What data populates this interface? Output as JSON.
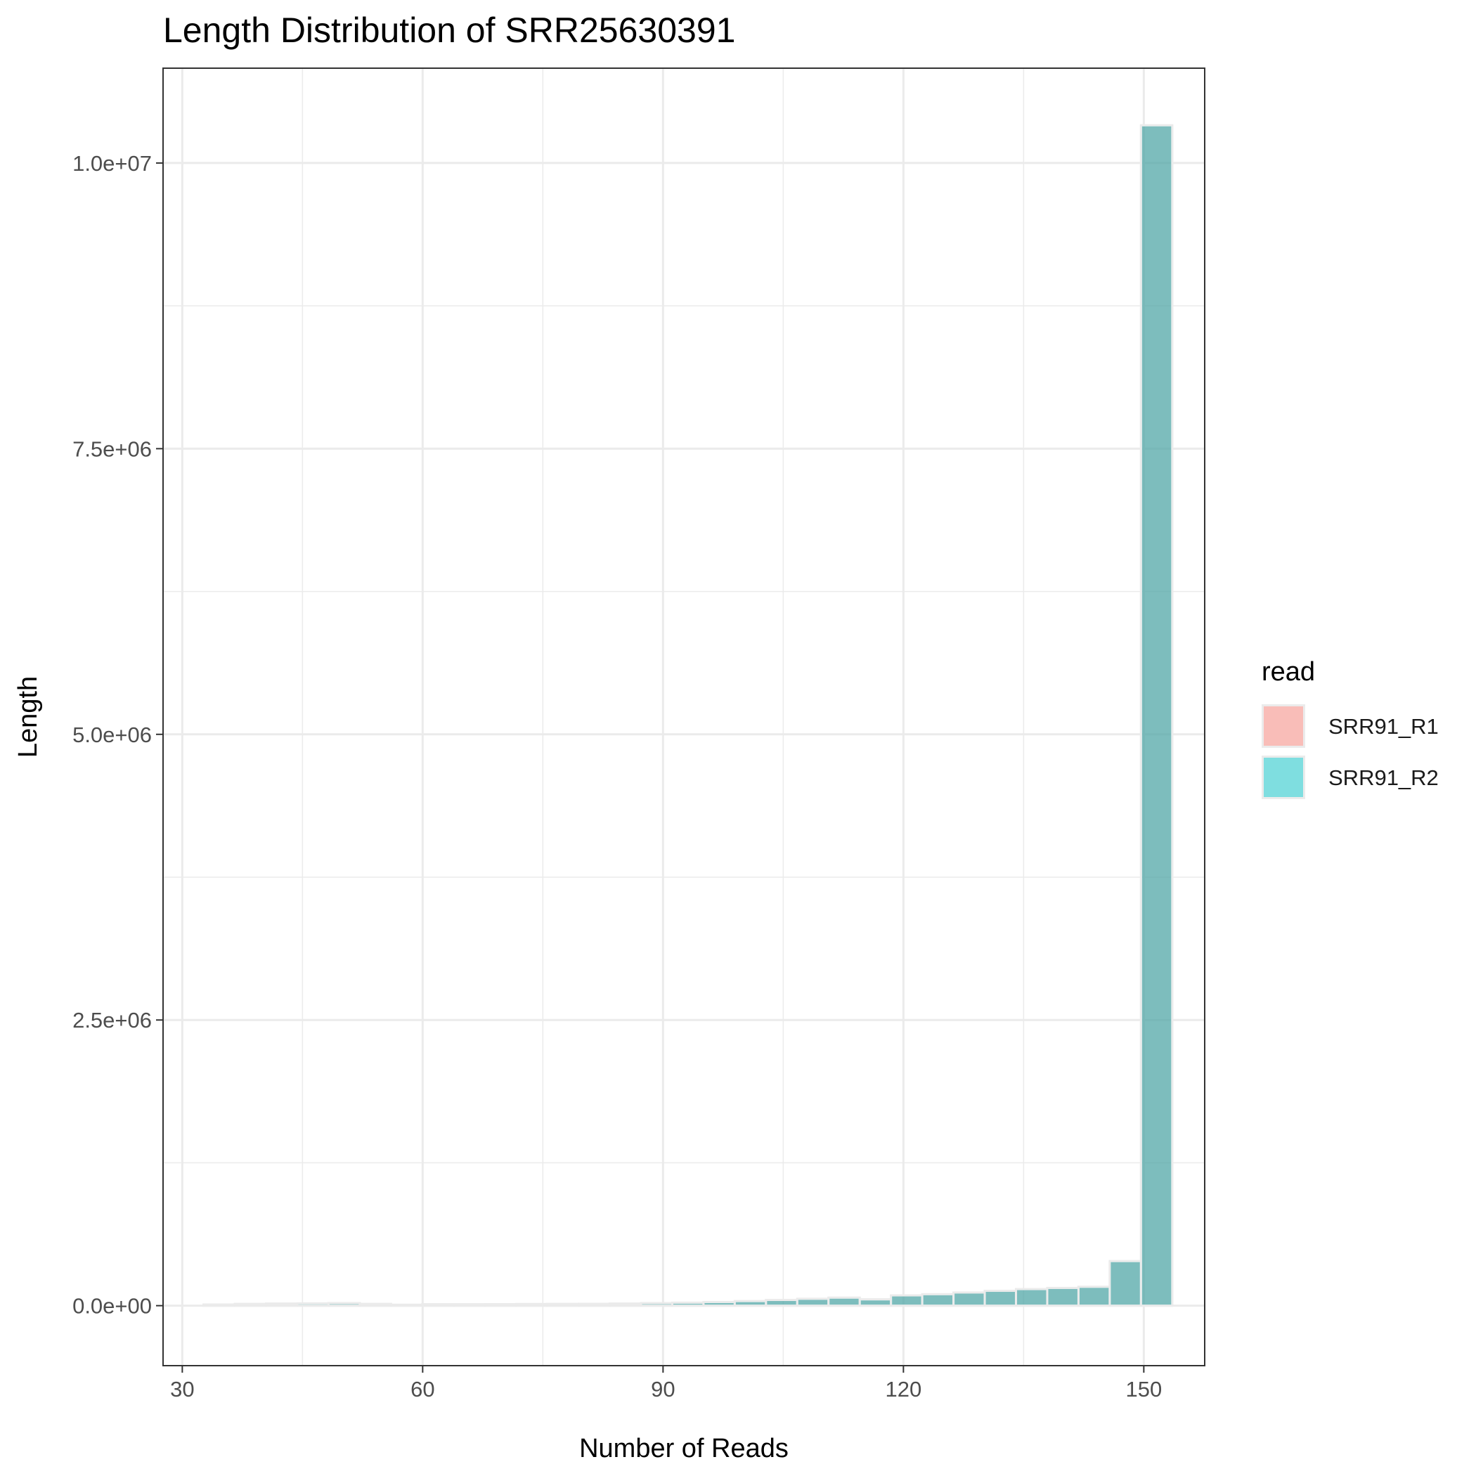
{
  "chart_data": {
    "type": "bar",
    "title": "Length Distribution of SRR25630391",
    "xlabel": "Number of Reads",
    "ylabel": "Length",
    "xlim": [
      27.6,
      157.6
    ],
    "ylim": [
      -525000,
      10830000
    ],
    "x_ticks": [
      30,
      60,
      90,
      120,
      150
    ],
    "x_tick_labels": [
      "30",
      "60",
      "90",
      "120",
      "150"
    ],
    "y_ticks": [
      0,
      2500000,
      5000000,
      7500000,
      10000000
    ],
    "y_tick_labels": [
      "0.0e+00",
      "2.5e+06",
      "5.0e+06",
      "7.5e+06",
      "1.0e+07"
    ],
    "grid": true,
    "legend": {
      "title": "read",
      "position": "right",
      "entries": [
        {
          "name": "SRR91_R1",
          "color": "#F8766D"
        },
        {
          "name": "SRR91_R2",
          "color": "#00BFC4"
        }
      ]
    },
    "bin_width": 3.9,
    "bin_centers": [
      34.6,
      38.5,
      42.4,
      46.3,
      50.2,
      54.1,
      58.0,
      61.9,
      65.8,
      69.7,
      73.6,
      77.5,
      81.4,
      85.3,
      89.2,
      93.1,
      97.0,
      100.9,
      104.8,
      108.7,
      112.6,
      116.5,
      120.4,
      124.3,
      128.2,
      132.1,
      136.0,
      139.9,
      143.8,
      147.7,
      151.6
    ],
    "series": [
      {
        "name": "SRR91_R1",
        "values": [
          10000,
          15000,
          18000,
          20000,
          22000,
          15000,
          8000,
          12000,
          12000,
          13000,
          14000,
          15000,
          16000,
          18000,
          22000,
          26000,
          32000,
          40000,
          50000,
          60000,
          70000,
          55000,
          90000,
          100000,
          115000,
          130000,
          145000,
          155000,
          165000,
          390000,
          10330000
        ]
      },
      {
        "name": "SRR91_R2",
        "values": [
          10000,
          15000,
          18000,
          20000,
          22000,
          15000,
          8000,
          12000,
          12000,
          13000,
          14000,
          15000,
          16000,
          18000,
          22000,
          26000,
          32000,
          40000,
          50000,
          60000,
          70000,
          55000,
          90000,
          100000,
          115000,
          130000,
          145000,
          155000,
          165000,
          390000,
          10330000
        ]
      }
    ]
  }
}
